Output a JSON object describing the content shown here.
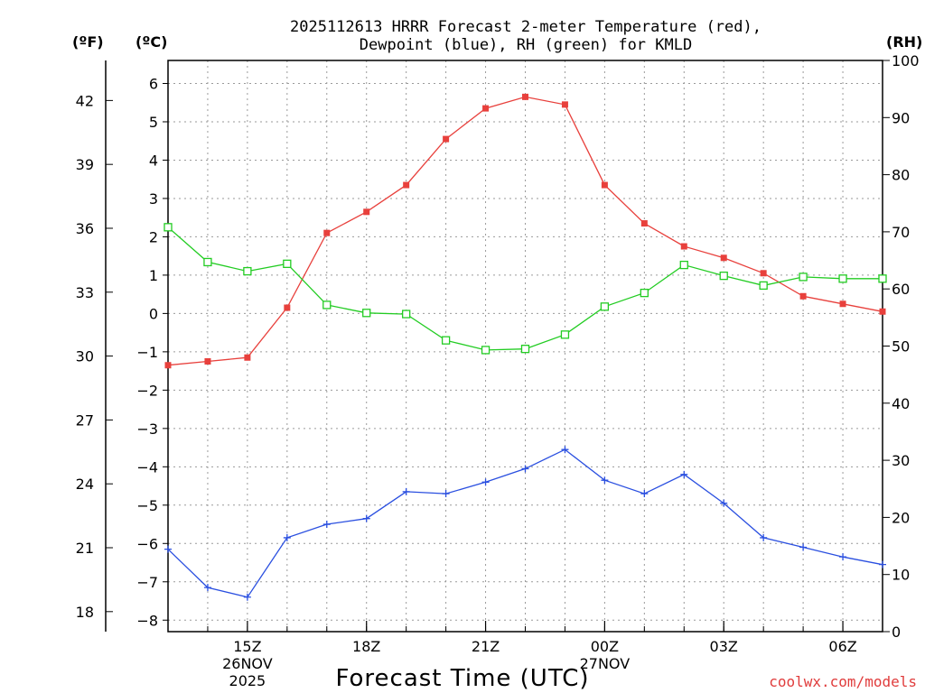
{
  "chart_data": {
    "type": "line",
    "title_lines": [
      "2025112613 HRRR Forecast 2-meter Temperature (red),",
      "Dewpoint (blue), RH (green) for KMLD"
    ],
    "unit_labels": {
      "fahrenheit": "(ºF)",
      "celsius": "(ºC)",
      "rh": "(RH)"
    },
    "xlabel": "Forecast Time (UTC)",
    "watermark": "coolwx.com/models",
    "x_hours": [
      0,
      1,
      2,
      3,
      4,
      5,
      6,
      7,
      8,
      9,
      10,
      11,
      12,
      13,
      14,
      15,
      16,
      17,
      18
    ],
    "x_tick_labels": [
      {
        "hour": 2,
        "lines": [
          "15Z",
          "26NOV",
          "2025"
        ]
      },
      {
        "hour": 5,
        "lines": [
          "18Z"
        ]
      },
      {
        "hour": 8,
        "lines": [
          "21Z"
        ]
      },
      {
        "hour": 11,
        "lines": [
          "00Z",
          "27NOV"
        ]
      },
      {
        "hour": 14,
        "lines": [
          "03Z"
        ]
      },
      {
        "hour": 17,
        "lines": [
          "06Z"
        ]
      }
    ],
    "xlim": [
      0,
      18
    ],
    "celsius_axis": {
      "ylim": [
        -8.3,
        6.6
      ],
      "ticks": [
        6,
        5,
        4,
        3,
        2,
        1,
        0,
        -1,
        -2,
        -3,
        -4,
        -5,
        -6,
        -7,
        -8
      ],
      "tick_labels": [
        "6",
        "5",
        "4",
        "3",
        "2",
        "1",
        "0",
        "−1",
        "−2",
        "−3",
        "−4",
        "−5",
        "−6",
        "−7",
        "−8"
      ]
    },
    "fahrenheit_axis": {
      "ticks": [
        42,
        39,
        36,
        33,
        30,
        27,
        24,
        21,
        18
      ],
      "tick_labels": [
        "42",
        "39",
        "36",
        "33",
        "30",
        "27",
        "24",
        "21",
        "18"
      ]
    },
    "rh_axis": {
      "ylim": [
        0,
        100
      ],
      "ticks": [
        100,
        90,
        80,
        70,
        60,
        50,
        40,
        30,
        20,
        10,
        0
      ],
      "tick_labels": [
        "100",
        "90",
        "80",
        "70",
        "60",
        "50",
        "40",
        "30",
        "20",
        "10",
        "0"
      ]
    },
    "series": [
      {
        "name": "Temperature",
        "axis": "celsius",
        "color": "#e8403c",
        "marker": "filled-square",
        "values": [
          -1.35,
          -1.25,
          -1.15,
          0.15,
          2.1,
          2.65,
          3.35,
          4.55,
          5.35,
          5.65,
          5.45,
          3.35,
          2.35,
          1.75,
          1.45,
          1.05,
          0.45,
          0.25,
          0.05
        ]
      },
      {
        "name": "Dewpoint",
        "axis": "celsius",
        "color": "#2a4fe0",
        "marker": "plus",
        "values": [
          -6.15,
          -7.15,
          -7.4,
          -5.85,
          -5.5,
          -5.35,
          -4.65,
          -4.7,
          -4.4,
          -4.05,
          -3.55,
          -4.35,
          -4.7,
          -4.2,
          -4.95,
          -5.85,
          -6.1,
          -6.35,
          -6.55
        ]
      },
      {
        "name": "RH",
        "axis": "rh",
        "color": "#22cc22",
        "marker": "open-square",
        "values": [
          70.8,
          64.7,
          63.1,
          64.4,
          57.2,
          55.8,
          55.6,
          51.0,
          49.3,
          49.5,
          52.0,
          56.9,
          59.3,
          64.2,
          62.3,
          60.6,
          62.1,
          61.8,
          61.8
        ]
      }
    ]
  }
}
